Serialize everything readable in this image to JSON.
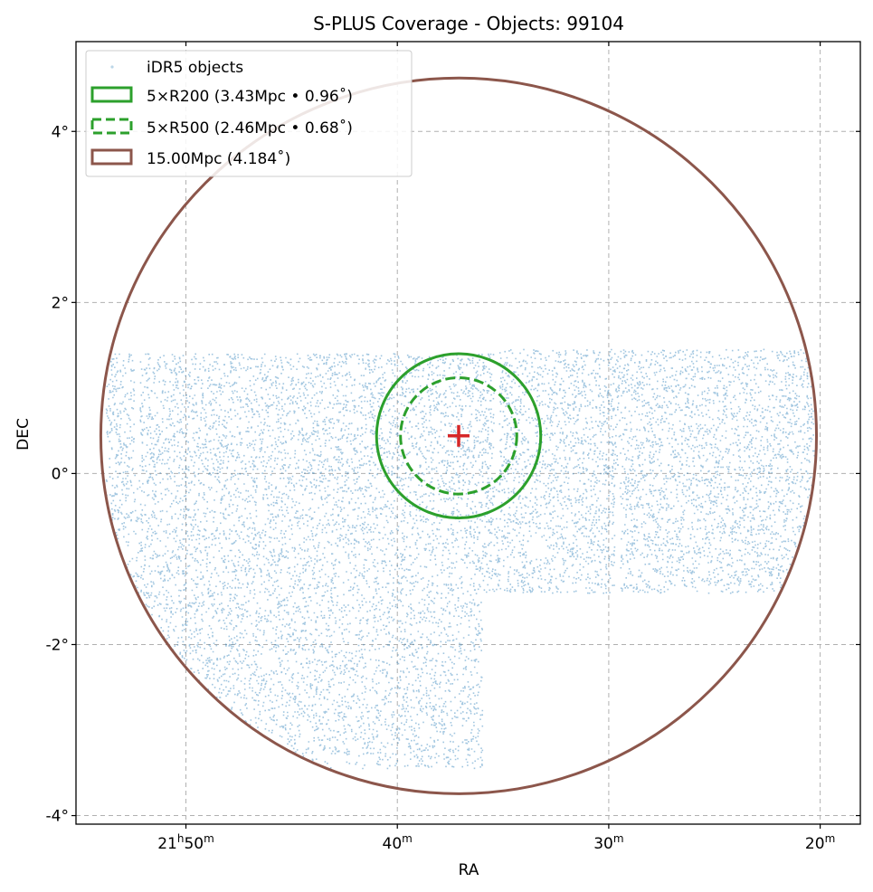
{
  "chart_data": {
    "type": "scatter",
    "title": "S-PLUS Coverage - Objects: 99104",
    "xlabel": "RA",
    "ylabel": "DEC",
    "x_unit": "RA minutes (21h)",
    "xlim": [
      55.2,
      18.1
    ],
    "ylim": [
      -4.1,
      5.05
    ],
    "x_ticks": [
      {
        "value": 50,
        "hours": "21",
        "minutes": "50",
        "h_sup": "h",
        "m_sup": "m"
      },
      {
        "value": 40,
        "hours": "",
        "minutes": "40",
        "h_sup": "",
        "m_sup": "m"
      },
      {
        "value": 30,
        "hours": "",
        "minutes": "30",
        "h_sup": "",
        "m_sup": "m"
      },
      {
        "value": 20,
        "hours": "",
        "minutes": "20",
        "h_sup": "",
        "m_sup": "m"
      }
    ],
    "y_ticks": [
      {
        "value": 4,
        "label": "4°"
      },
      {
        "value": 2,
        "label": "2°"
      },
      {
        "value": 0,
        "label": "0°"
      },
      {
        "value": -2,
        "label": "-2°"
      },
      {
        "value": -4,
        "label": "-4°"
      }
    ],
    "grid": true,
    "legend_position": "top-left",
    "center": {
      "ra_min": 37.1,
      "dec": 0.44
    },
    "circles": [
      {
        "name": "5×R200 (3.43Mpc • 0.96˚)",
        "radius_deg": 0.96,
        "color": "#2ca02c",
        "style": "solid"
      },
      {
        "name": "5×R500 (2.46Mpc • 0.68˚)",
        "radius_deg": 0.68,
        "color": "#2ca02c",
        "style": "dashed"
      },
      {
        "name": "15.00Mpc (4.184˚)",
        "radius_deg": 4.184,
        "color": "#8c564b",
        "style": "solid"
      }
    ],
    "points_series": {
      "name": "iDR5 objects",
      "color": "#1f77b4",
      "count": 99104
    },
    "coverage_regions": [
      {
        "ra": [
          53.8,
          35.2
        ],
        "dec": [
          0.0,
          1.4
        ]
      },
      {
        "ra": [
          35.2,
          20.3
        ],
        "dec": [
          0.0,
          1.45
        ]
      },
      {
        "ra": [
          53.8,
          36.0
        ],
        "dec": [
          -3.45,
          0.0
        ]
      },
      {
        "ra": [
          36.0,
          20.3
        ],
        "dec": [
          -1.4,
          0.0
        ]
      }
    ],
    "coverage_gaps": [
      {
        "ra": [
          52.45,
          52.2
        ],
        "dec": [
          0.0,
          1.4
        ]
      },
      {
        "ra": [
          35.45,
          35.2
        ],
        "dec": [
          0.0,
          1.4
        ]
      },
      {
        "ra": [
          46.65,
          46.4
        ],
        "dec": [
          -0.65,
          0.0
        ]
      },
      {
        "ra": [
          29.75,
          29.5
        ],
        "dec": [
          -1.4,
          0.0
        ]
      }
    ],
    "coverage_holes": [
      {
        "ra": 33.4,
        "dec": -0.85,
        "r_deg": 0.12
      },
      {
        "ra": 46.1,
        "dec": -2.2,
        "r_deg": 0.1
      },
      {
        "ra": 42.2,
        "dec": 1.25,
        "r_deg": 0.07
      },
      {
        "ra": 26.6,
        "dec": 1.1,
        "r_deg": 0.05
      }
    ],
    "colors": {
      "points": "#1f77b4",
      "r200": "#2ca02c",
      "r500": "#2ca02c",
      "r15": "#8c564b",
      "center_marker": "#d62728",
      "grid": "#b0b0b0"
    }
  }
}
